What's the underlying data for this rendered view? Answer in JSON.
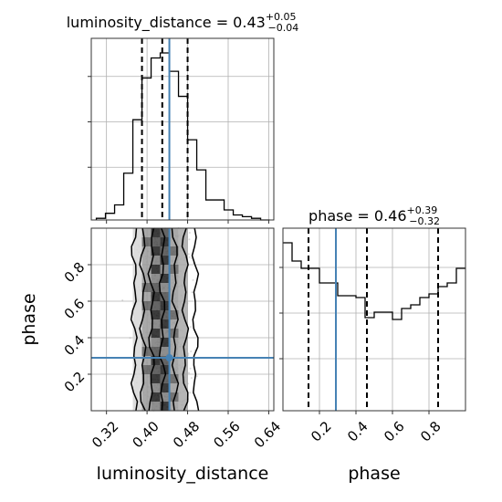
{
  "chart_data": [
    {
      "type": "histogram",
      "panel": "top-left",
      "parameter": "luminosity_distance",
      "title": "luminosity_distance = 0.43",
      "title_sup": "+0.05",
      "title_sub": "−0.04",
      "xlim": [
        0.29,
        0.65
      ],
      "bins": [
        0.3,
        0.318,
        0.336,
        0.354,
        0.372,
        0.39,
        0.408,
        0.426,
        0.444,
        0.462,
        0.48,
        0.498,
        0.516,
        0.534,
        0.552,
        0.57,
        0.588,
        0.606,
        0.624,
        0.642
      ],
      "counts": [
        0.01,
        0.04,
        0.09,
        0.28,
        0.6,
        0.85,
        0.97,
        1.0,
        0.89,
        0.74,
        0.48,
        0.3,
        0.12,
        0.12,
        0.06,
        0.03,
        0.02,
        0.01,
        0.0
      ],
      "quantiles": [
        0.39,
        0.43,
        0.48
      ],
      "truth": 0.444,
      "grid": true
    },
    {
      "type": "histogram",
      "panel": "bottom-right",
      "parameter": "phase",
      "title": "phase = 0.46",
      "title_sup": "+0.39",
      "title_sub": "−0.32",
      "xlim": [
        0.0,
        1.0
      ],
      "bins": [
        0.0,
        0.05,
        0.1,
        0.15,
        0.2,
        0.25,
        0.3,
        0.35,
        0.4,
        0.45,
        0.5,
        0.55,
        0.6,
        0.65,
        0.7,
        0.75,
        0.8,
        0.85,
        0.9,
        0.95,
        1.0
      ],
      "counts": [
        0.92,
        0.82,
        0.78,
        0.78,
        0.7,
        0.7,
        0.63,
        0.63,
        0.62,
        0.51,
        0.54,
        0.54,
        0.5,
        0.56,
        0.58,
        0.62,
        0.64,
        0.68,
        0.7,
        0.78
      ],
      "quantiles": [
        0.14,
        0.46,
        0.85
      ],
      "truth": 0.29,
      "xticks": [
        "0.2",
        "0.4",
        "0.6",
        "0.8"
      ],
      "xticks_values": [
        0.2,
        0.4,
        0.6,
        0.8
      ],
      "xlabel": "phase",
      "grid": true
    },
    {
      "type": "heatmap",
      "panel": "bottom-left",
      "x_parameter": "luminosity_distance",
      "y_parameter": "phase",
      "xlim": [
        0.29,
        0.65
      ],
      "ylim": [
        0.0,
        1.0
      ],
      "truth": [
        0.444,
        0.29
      ],
      "xticks": [
        "0.32",
        "0.40",
        "0.48",
        "0.56",
        "0.64"
      ],
      "xticks_values": [
        0.32,
        0.4,
        0.48,
        0.56,
        0.64
      ],
      "yticks": [
        "0.2",
        "0.4",
        "0.6",
        "0.8"
      ],
      "yticks_values": [
        0.2,
        0.4,
        0.6,
        0.8
      ],
      "xlabel": "luminosity_distance",
      "ylabel": "phase",
      "grid": true
    }
  ],
  "colors": {
    "truth": "#4682b4",
    "hist": "#000000",
    "quantile": "#000000",
    "grid": "#b0b0b0",
    "scatter": "#9a9a9a"
  }
}
